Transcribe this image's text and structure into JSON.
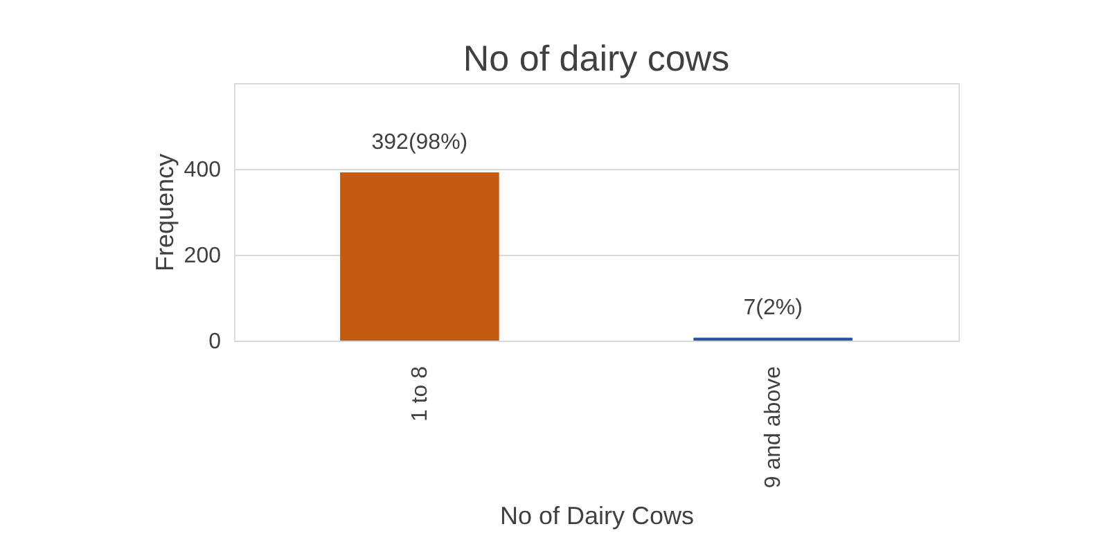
{
  "chart_data": {
    "type": "bar",
    "title": "No of dairy cows",
    "xlabel": "No of Dairy  Cows",
    "ylabel": "Frequency",
    "categories": [
      "1 to 8",
      "9 and above"
    ],
    "values": [
      392,
      7
    ],
    "colors": [
      "#c55a11",
      "#2f5597"
    ],
    "value_labels": [
      "392(98%)",
      "7(2%)"
    ],
    "ylim": [
      0,
      600
    ],
    "yticks": [
      0,
      200,
      400,
      {
        "value": 600,
        "label": null
      }
    ],
    "grid": "y"
  }
}
